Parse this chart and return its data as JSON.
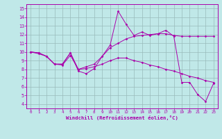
{
  "xlabel": "Windchill (Refroidissement éolien,°C)",
  "background_color": "#c0e8e8",
  "line_color": "#aa00aa",
  "grid_color": "#99bbbb",
  "xlim": [
    -0.5,
    23.5
  ],
  "ylim": [
    3.5,
    15.5
  ],
  "yticks": [
    4,
    5,
    6,
    7,
    8,
    9,
    10,
    11,
    12,
    13,
    14,
    15
  ],
  "xticks": [
    0,
    1,
    2,
    3,
    4,
    5,
    6,
    7,
    8,
    9,
    10,
    11,
    12,
    13,
    14,
    15,
    16,
    17,
    18,
    19,
    20,
    21,
    22,
    23
  ],
  "line1_x": [
    0,
    1,
    2,
    3,
    4,
    5,
    6,
    7,
    8,
    9,
    10,
    11,
    12,
    13,
    14,
    15,
    16,
    17,
    18,
    19,
    20,
    21,
    22,
    23
  ],
  "line1_y": [
    10.0,
    9.9,
    9.5,
    8.6,
    8.6,
    9.9,
    7.8,
    7.5,
    8.1,
    9.5,
    10.8,
    14.7,
    13.2,
    11.9,
    12.3,
    11.9,
    12.1,
    12.5,
    11.8,
    6.5,
    6.5,
    5.1,
    4.3,
    6.4
  ],
  "line2_x": [
    0,
    1,
    2,
    3,
    4,
    5,
    6,
    7,
    8,
    9,
    10,
    11,
    12,
    13,
    14,
    15,
    16,
    17,
    18,
    19,
    20,
    21,
    22,
    23
  ],
  "line2_y": [
    10.0,
    9.9,
    9.5,
    8.6,
    8.6,
    9.9,
    8.0,
    8.3,
    8.6,
    9.5,
    10.5,
    11.0,
    11.5,
    11.8,
    11.9,
    12.0,
    12.1,
    12.1,
    11.9,
    11.8,
    11.8,
    11.8,
    11.8,
    11.8
  ],
  "line3_x": [
    0,
    1,
    2,
    3,
    4,
    5,
    6,
    7,
    8,
    9,
    10,
    11,
    12,
    13,
    14,
    15,
    16,
    17,
    18,
    19,
    20,
    21,
    22,
    23
  ],
  "line3_y": [
    10.0,
    9.8,
    9.5,
    8.6,
    8.5,
    9.6,
    8.0,
    8.1,
    8.3,
    8.6,
    9.0,
    9.3,
    9.3,
    9.0,
    8.8,
    8.5,
    8.3,
    8.0,
    7.8,
    7.5,
    7.2,
    7.0,
    6.7,
    6.5
  ]
}
